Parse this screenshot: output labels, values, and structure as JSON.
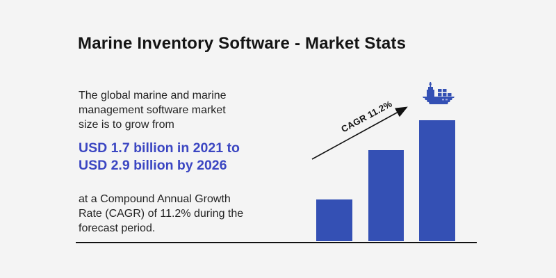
{
  "colors": {
    "background": "#f4f4f4",
    "title_text": "#141414",
    "body_text": "#232323",
    "highlight_blue": "#3b46c2",
    "bar_blue": "#3450b4",
    "arrow_black": "#111111"
  },
  "header": {
    "title": "Marine Inventory Software - Market Stats"
  },
  "text_block": {
    "intro_lines": [
      "The global marine and marine",
      "management software market",
      "size is to grow from"
    ],
    "highlight_lines": [
      "USD 1.7 billion in 2021 to",
      "USD 2.9 billion by 2026"
    ],
    "outro_lines": [
      "at a Compound Annual Growth",
      "Rate (CAGR) of 11.2% during the",
      "forecast period."
    ]
  },
  "chart_data": {
    "type": "bar",
    "categories": [
      "bar-1",
      "bar-2",
      "bar-3"
    ],
    "values": [
      60,
      131,
      174
    ],
    "value_units": "relative bar heights in px (decorative chart, no axes or tick labels shown)",
    "annotations": [
      "CAGR 11.2%"
    ],
    "stated_figures": {
      "start_year": 2021,
      "start_value_usd_billion": 1.7,
      "end_year": 2026,
      "end_value_usd_billion": 2.9,
      "cagr_percent": 11.2
    },
    "title": "",
    "xlabel": "",
    "ylabel": "",
    "grid": false,
    "legend": false,
    "icons": [
      "cargo-ship"
    ]
  }
}
